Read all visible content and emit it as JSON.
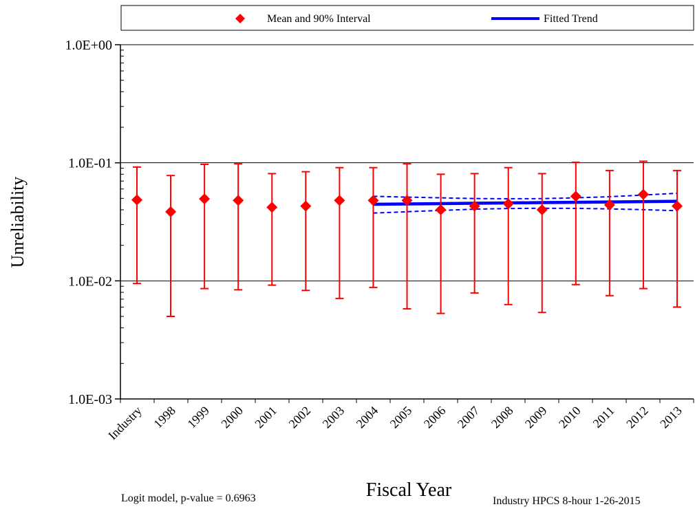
{
  "legend": {
    "items": [
      {
        "label": "Mean and 90% Interval",
        "marker": "diamond"
      },
      {
        "label": "Fitted Trend",
        "marker": "line"
      }
    ]
  },
  "axis": {
    "ylabel": "Unreliability",
    "xlabel": "Fiscal Year"
  },
  "notes": {
    "left": "Logit model, p-value = 0.6963",
    "right": "Industry HPCS 8-hour 1-26-2015"
  },
  "colors": {
    "points": "#ff0000",
    "trend": "#0000ff",
    "grid": "#000000",
    "frame": "#000000"
  },
  "chart_data": {
    "type": "scatter",
    "yscale": "log",
    "ylim": [
      0.001,
      1.0
    ],
    "yticks": [
      {
        "value": 1.0,
        "label": "1.0E+00"
      },
      {
        "value": 0.1,
        "label": "1.0E-01"
      },
      {
        "value": 0.01,
        "label": "1.0E-02"
      },
      {
        "value": 0.001,
        "label": "1.0E-03"
      }
    ],
    "grid": true,
    "legend_position": "top",
    "categories": [
      "Industry",
      "1998",
      "1999",
      "2000",
      "2001",
      "2002",
      "2003",
      "2004",
      "2005",
      "2006",
      "2007",
      "2008",
      "2009",
      "2010",
      "2011",
      "2012",
      "2013"
    ],
    "series": [
      {
        "name": "Mean and 90% Interval",
        "mean": [
          0.0485,
          0.0385,
          0.0495,
          0.048,
          0.042,
          0.043,
          0.048,
          0.048,
          0.048,
          0.04,
          0.043,
          0.045,
          0.04,
          0.052,
          0.044,
          0.054,
          0.043
        ],
        "lower": [
          0.0095,
          0.005,
          0.0086,
          0.0084,
          0.0092,
          0.0083,
          0.0071,
          0.0088,
          0.0058,
          0.0053,
          0.0079,
          0.0063,
          0.0054,
          0.0093,
          0.0075,
          0.0086,
          0.006
        ],
        "upper": [
          0.092,
          0.078,
          0.097,
          0.098,
          0.081,
          0.084,
          0.091,
          0.091,
          0.098,
          0.08,
          0.081,
          0.091,
          0.081,
          0.101,
          0.086,
          0.103,
          0.086
        ]
      },
      {
        "name": "Fitted Trend",
        "categories": [
          "2004",
          "2005",
          "2006",
          "2007",
          "2008",
          "2009",
          "2010",
          "2011",
          "2012",
          "2013"
        ],
        "fit": [
          0.0445,
          0.0448,
          0.0451,
          0.0454,
          0.0457,
          0.046,
          0.0463,
          0.0466,
          0.0469,
          0.0472
        ],
        "lower": [
          0.0375,
          0.0385,
          0.0395,
          0.0405,
          0.041,
          0.0412,
          0.0411,
          0.0407,
          0.0401,
          0.0393
        ],
        "upper": [
          0.052,
          0.0512,
          0.0505,
          0.0498,
          0.0496,
          0.0497,
          0.0505,
          0.0516,
          0.0533,
          0.0552
        ]
      }
    ]
  }
}
